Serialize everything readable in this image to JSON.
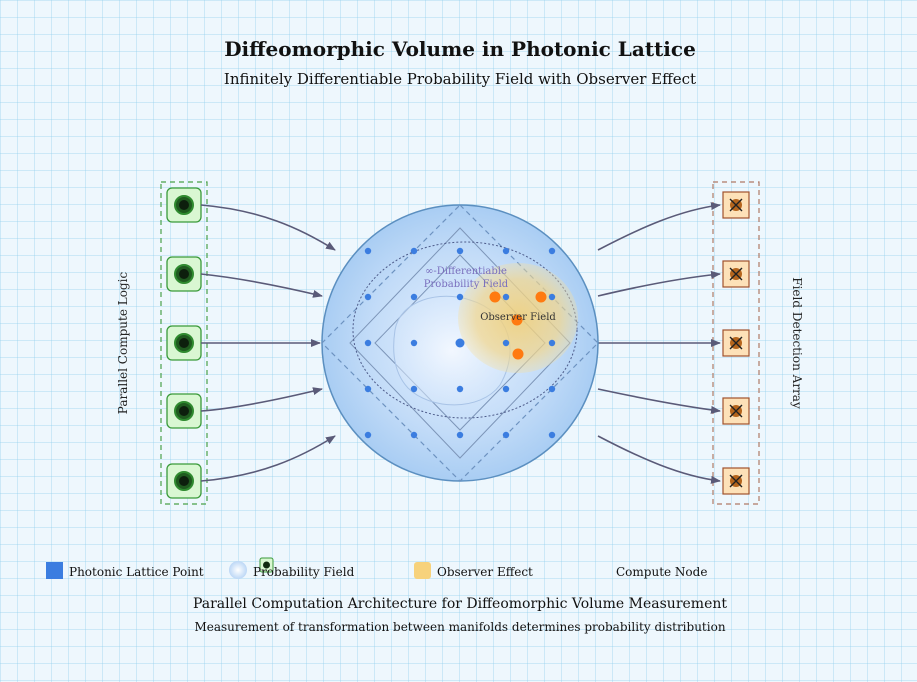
{
  "header": {
    "title": "Diffeomorphic Volume in Photonic Lattice",
    "subtitle": "Infinitely Differentiable Probability Field with Observer Effect"
  },
  "left_panel": {
    "label": "Parallel Compute Logic",
    "node_count": 5
  },
  "right_panel": {
    "label": "Field Detection Array",
    "detector_count": 5
  },
  "sphere": {
    "field_label_line1": "∞-Differentiable",
    "field_label_line2": "Probability Field",
    "observer_label": "Observer Field"
  },
  "legend": {
    "lattice": "Photonic Lattice Point",
    "probability": "Probability Field",
    "observer": "Observer Effect",
    "compute": "Compute Node"
  },
  "footer": {
    "main": "Parallel Computation Architecture for Diffeomorphic Volume Measurement",
    "sub": "Measurement of transformation between manifolds determines probability distribution"
  },
  "colors": {
    "lattice_point": "#3b7de0",
    "observer_point": "#ff7a10",
    "compute_fill": "#d9f7d2",
    "compute_stroke": "#3a9a3a",
    "detector_fill": "#fde1b8",
    "detector_stroke": "#a0522d",
    "sphere_stroke": "#5b8fc0",
    "arrow": "#5a5a78"
  }
}
